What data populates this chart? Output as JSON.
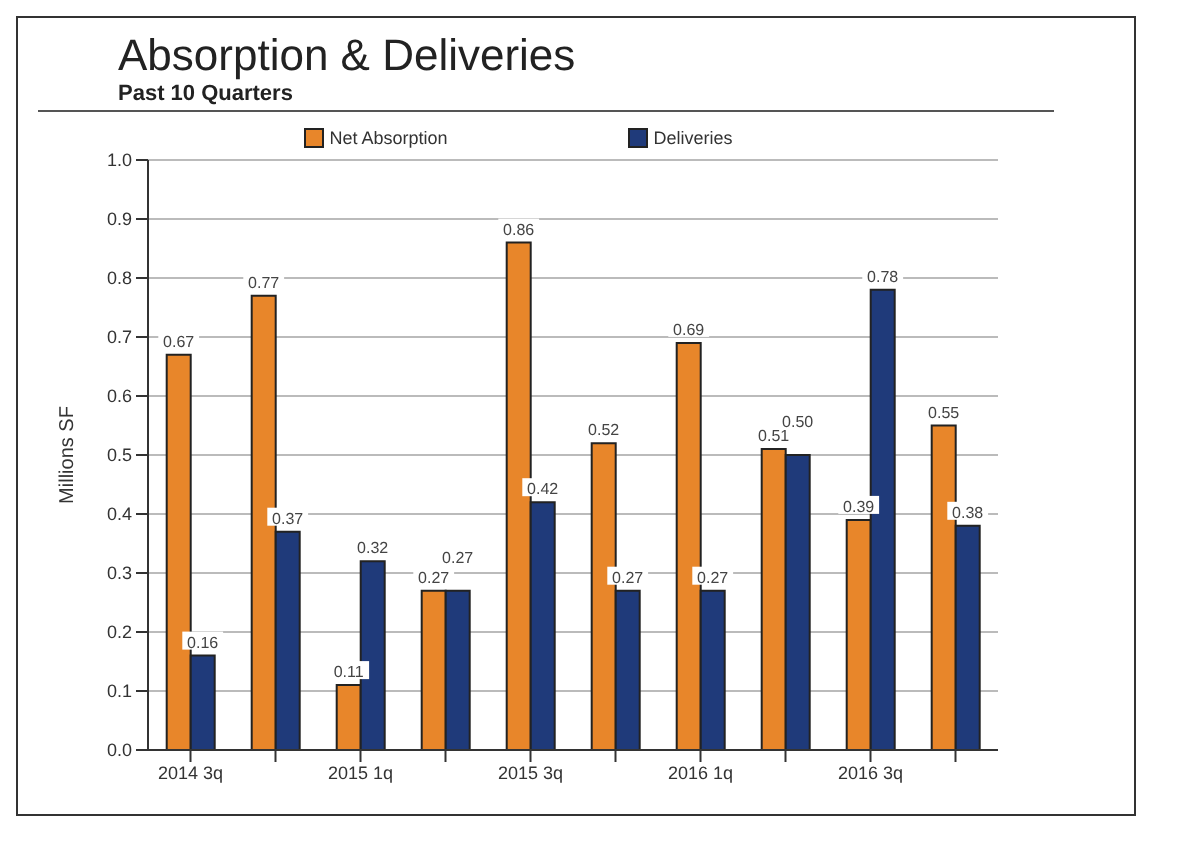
{
  "chart_data": {
    "type": "bar",
    "title": "Absorption & Deliveries",
    "subtitle": "Past 10 Quarters",
    "ylabel": "Millions SF",
    "categories": [
      "2014 3q",
      null,
      "2015 1q",
      null,
      "2015 3q",
      null,
      "2016 1q",
      null,
      "2016 3q",
      null
    ],
    "series": [
      {
        "name": "Net Absorption",
        "color": "#e8862a",
        "values": [
          0.67,
          0.77,
          0.11,
          0.27,
          0.86,
          0.52,
          0.69,
          0.51,
          0.39,
          0.55
        ],
        "value_labels": [
          "0.67",
          "0.77",
          "0.11",
          "0.27",
          "0.86",
          "0.52",
          "0.69",
          "0.51",
          "0.39",
          "0.55"
        ]
      },
      {
        "name": "Deliveries",
        "color": "#1f3a7a",
        "values": [
          0.16,
          0.37,
          0.32,
          0.27,
          0.42,
          0.27,
          0.27,
          0.5,
          0.78,
          0.38
        ],
        "value_labels": [
          "0.16",
          "0.37",
          "0.32",
          "0.27",
          "0.42",
          "0.27",
          "0.27",
          "0.50",
          "0.78",
          "0.38"
        ]
      }
    ],
    "ylim": [
      0,
      1
    ],
    "yticks": [
      {
        "value": 0,
        "label": "0.0"
      },
      0.1,
      0.2,
      0.3,
      0.4,
      0.5,
      0.6,
      0.7,
      0.8,
      0.9,
      {
        "value": 1,
        "label": "1.0"
      }
    ],
    "grid": "y",
    "legend": "top"
  }
}
